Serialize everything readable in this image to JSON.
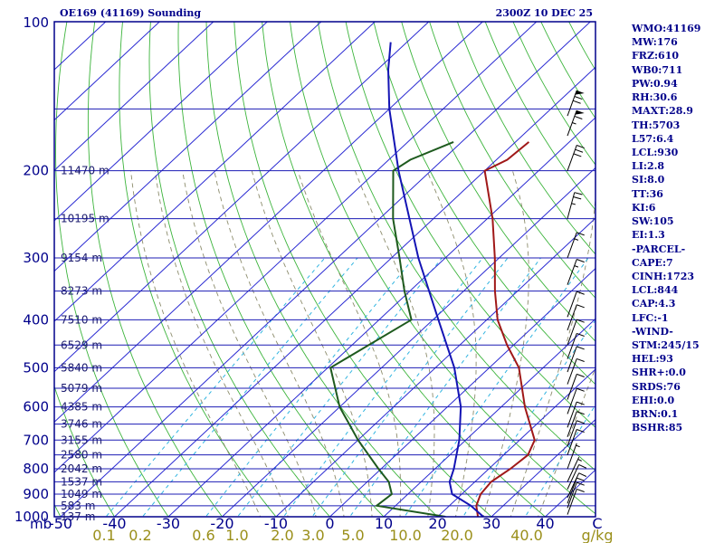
{
  "header": {
    "title": "OE169 (41169) Sounding",
    "timestamp": "2300Z 10 DEC 25"
  },
  "indices": [
    "WMO:41169",
    "MW:176",
    "FRZ:610",
    "WB0:711",
    "PW:0.94",
    "RH:30.6",
    "MAXT:28.9",
    "TH:5703",
    "L57:6.4",
    "LCL:930",
    "LI:2.8",
    "SI:8.0",
    "TT:36",
    "KI:6",
    "SW:105",
    "EI:1.3",
    "-PARCEL-",
    "CAPE:7",
    "CINH:1723",
    "LCL:844",
    "CAP:4.3",
    "LFC:-1",
    "-WIND-",
    "STM:245/15",
    "HEL:93",
    "SHR+:0.0",
    "SRDS:76",
    "EHI:0.0",
    "BRN:0.1",
    "BSHR:85"
  ],
  "colors": {
    "frame": "#00008b",
    "isobar": "#1c1cb4",
    "isotherm": "#2a2ad2",
    "dry_adiabat": "#3cb43c",
    "moist_adiabat": "#8c8c6c",
    "mixing_ratio": "#30b4e0",
    "temperature": "#a01818",
    "dewpoint": "#1e5a1e",
    "parcel": "#1414b4",
    "wind_barb": "#000000",
    "text": "#00008b",
    "mixing_label": "#9a8f1a"
  },
  "chart_data": {
    "type": "skew-t",
    "pressure_unit": "mb",
    "temperature_unit": "C",
    "mixing_ratio_unit": "g/kg",
    "pressure_axis": {
      "labels": [
        100,
        200,
        300,
        400,
        500,
        600,
        700,
        800,
        900,
        1000
      ],
      "range": [
        1000,
        100
      ],
      "scale": "log",
      "axis_label": "mb"
    },
    "temperature_axis": {
      "labels": [
        -50,
        -40,
        -30,
        -20,
        -10,
        0,
        10,
        20,
        30,
        40
      ],
      "unit_label": "C",
      "range": [
        -50,
        50
      ]
    },
    "mixing_ratio_labels": [
      "0.1",
      "0.2",
      "0.6",
      "1.0",
      "2.0",
      "3.0",
      "5.0",
      "10.0",
      "20.0",
      "40.0"
    ],
    "mixing_ratio_values": [
      0.1,
      0.2,
      0.6,
      1.0,
      2.0,
      3.0,
      5.0,
      10.0,
      20.0,
      40.0
    ],
    "mixing_ratio_axis_label": "g/kg",
    "height_labels": [
      {
        "p": 137,
        "label": "137 m"
      },
      {
        "p": 583,
        "label": "583 m"
      },
      {
        "p": 1049,
        "label": "1049 m"
      },
      {
        "p": 1537,
        "label": "1537 m"
      },
      {
        "p": 2042,
        "label": "2042 m"
      },
      {
        "p": 2580,
        "label": "2580 m"
      },
      {
        "p": 3155,
        "label": "3155 m"
      },
      {
        "p": 3746,
        "label": "3746 m"
      },
      {
        "p": 4385,
        "label": "4385 m"
      },
      {
        "p": 5079,
        "label": "5079 m"
      },
      {
        "p": 5840,
        "label": "5840 m"
      },
      {
        "p": 6529,
        "label": "6529 m"
      },
      {
        "p": 7510,
        "label": "7510 m"
      },
      {
        "p": 8273,
        "label": "8273 m"
      },
      {
        "p": 9154,
        "label": "9154 m"
      },
      {
        "p": 10195,
        "label": "10195 m"
      },
      {
        "p": 11470,
        "label": "11470 m"
      }
    ],
    "height_label_pressures": [
      1000,
      950,
      900,
      850,
      800,
      750,
      700,
      650,
      600,
      550,
      500,
      450,
      400,
      350,
      300,
      250,
      200
    ],
    "series": [
      {
        "name": "Temperature",
        "points": [
          {
            "p": 1000,
            "t": 27.5
          },
          {
            "p": 950,
            "t": 25.0
          },
          {
            "p": 900,
            "t": 23.5
          },
          {
            "p": 850,
            "t": 23.0
          },
          {
            "p": 800,
            "t": 24.0
          },
          {
            "p": 750,
            "t": 24.5
          },
          {
            "p": 700,
            "t": 22.8
          },
          {
            "p": 600,
            "t": 14.4
          },
          {
            "p": 500,
            "t": 5.5
          },
          {
            "p": 450,
            "t": -1.2
          },
          {
            "p": 400,
            "t": -8.0
          },
          {
            "p": 350,
            "t": -14.2
          },
          {
            "p": 300,
            "t": -20.8
          },
          {
            "p": 250,
            "t": -29.0
          },
          {
            "p": 200,
            "t": -40.0
          },
          {
            "p": 190,
            "t": -38.0
          },
          {
            "p": 175,
            "t": -37.5
          }
        ]
      },
      {
        "name": "Dewpoint",
        "points": [
          {
            "p": 1000,
            "t": 21.5
          },
          {
            "p": 950,
            "t": 6.5
          },
          {
            "p": 900,
            "t": 7.0
          },
          {
            "p": 850,
            "t": 4.0
          },
          {
            "p": 800,
            "t": -0.5
          },
          {
            "p": 700,
            "t": -10.0
          },
          {
            "p": 600,
            "t": -20.0
          },
          {
            "p": 500,
            "t": -29.5
          },
          {
            "p": 400,
            "t": -24.0
          },
          {
            "p": 350,
            "t": -31.0
          },
          {
            "p": 300,
            "t": -38.5
          },
          {
            "p": 250,
            "t": -47.5
          },
          {
            "p": 200,
            "t": -57.0
          },
          {
            "p": 190,
            "t": -56.0
          },
          {
            "p": 175,
            "t": -51.5
          }
        ]
      },
      {
        "name": "Parcel",
        "points": [
          {
            "p": 1000,
            "t": 28.5
          },
          {
            "p": 950,
            "t": 24.0
          },
          {
            "p": 900,
            "t": 18.2
          },
          {
            "p": 850,
            "t": 15.3
          },
          {
            "p": 800,
            "t": 13.5
          },
          {
            "p": 700,
            "t": 8.8
          },
          {
            "p": 600,
            "t": 2.5
          },
          {
            "p": 500,
            "t": -6.5
          },
          {
            "p": 400,
            "t": -19.0
          },
          {
            "p": 300,
            "t": -35.0
          },
          {
            "p": 200,
            "t": -56.0
          },
          {
            "p": 150,
            "t": -70.0
          },
          {
            "p": 125,
            "t": -78.0
          },
          {
            "p": 110,
            "t": -83.0
          }
        ]
      }
    ],
    "wind_barbs": [
      {
        "p": 990,
        "dir": 20,
        "speed": 10
      },
      {
        "p": 960,
        "dir": 20,
        "speed": 10
      },
      {
        "p": 940,
        "dir": 20,
        "speed": 10
      },
      {
        "p": 915,
        "dir": 25,
        "speed": 10
      },
      {
        "p": 880,
        "dir": 25,
        "speed": 10
      },
      {
        "p": 850,
        "dir": 25,
        "speed": 5
      },
      {
        "p": 800,
        "dir": 20,
        "speed": 5
      },
      {
        "p": 750,
        "dir": 20,
        "speed": 10
      },
      {
        "p": 720,
        "dir": 20,
        "speed": 10
      },
      {
        "p": 690,
        "dir": 20,
        "speed": 10
      },
      {
        "p": 660,
        "dir": 20,
        "speed": 10
      },
      {
        "p": 620,
        "dir": 20,
        "speed": 10
      },
      {
        "p": 580,
        "dir": 20,
        "speed": 10
      },
      {
        "p": 540,
        "dir": 20,
        "speed": 10
      },
      {
        "p": 510,
        "dir": 20,
        "speed": 10
      },
      {
        "p": 480,
        "dir": 20,
        "speed": 10
      },
      {
        "p": 450,
        "dir": 20,
        "speed": 10
      },
      {
        "p": 420,
        "dir": 20,
        "speed": 10
      },
      {
        "p": 395,
        "dir": 20,
        "speed": 10
      },
      {
        "p": 340,
        "dir": 20,
        "speed": 15
      },
      {
        "p": 300,
        "dir": 20,
        "speed": 15
      },
      {
        "p": 250,
        "dir": 15,
        "speed": 25
      },
      {
        "p": 200,
        "dir": 20,
        "speed": 30
      },
      {
        "p": 170,
        "dir": 20,
        "speed": 65
      },
      {
        "p": 155,
        "dir": 20,
        "speed": 70
      }
    ]
  }
}
